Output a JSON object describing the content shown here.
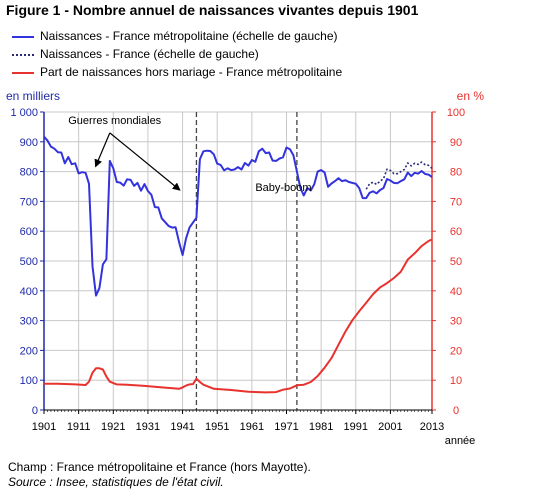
{
  "title": "Figure 1 - Nombre annuel de naissances vivantes depuis 1901",
  "legend": [
    {
      "label": "Naissances - France métropolitaine (échelle de gauche)",
      "color": "#3333dd",
      "style": "solid"
    },
    {
      "label": "Naissances - France (échelle de gauche)",
      "color": "#2a2a7a",
      "style": "dotted"
    },
    {
      "label": "Part de naissances hors mariage - France métropolitaine",
      "color": "#e8322e",
      "style": "solid"
    }
  ],
  "footer": {
    "champ": "Champ : France métropolitaine et France (hors Mayotte).",
    "source": "Source : Insee, statistiques de l'état civil."
  },
  "chart_data": {
    "type": "line",
    "left_axis": {
      "label": "en milliers",
      "range": [
        0,
        1000
      ],
      "ticks": [
        "0",
        "100",
        "200",
        "300",
        "400",
        "500",
        "600",
        "700",
        "800",
        "900",
        "1 000"
      ],
      "color": "#1f2aa8"
    },
    "right_axis": {
      "label": "en %",
      "range": [
        0,
        100
      ],
      "ticks": [
        "0",
        "10",
        "20",
        "30",
        "40",
        "50",
        "60",
        "70",
        "80",
        "90",
        "100"
      ],
      "color": "#e8322e"
    },
    "x_axis": {
      "label": "année",
      "range": [
        1901,
        2013
      ],
      "ticks": [
        "1901",
        "1911",
        "1921",
        "1931",
        "1941",
        "1951",
        "1961",
        "1971",
        "1981",
        "1991",
        "2001",
        "2013"
      ]
    },
    "grid": true,
    "vlines": [
      1945,
      1974
    ],
    "annotations": [
      {
        "text": "Guerres mondiales",
        "arrows_to": [
          [
            1916,
            820
          ],
          [
            1940,
            740
          ]
        ]
      },
      {
        "text": "Baby-boom",
        "near": [
          1967,
          735
        ]
      }
    ],
    "series": [
      {
        "name": "Naissances - France métropolitaine (échelle de gauche)",
        "axis": "left",
        "color": "#3333dd",
        "style": "solid",
        "x": [
          1901,
          1902,
          1903,
          1904,
          1905,
          1906,
          1907,
          1908,
          1909,
          1910,
          1911,
          1912,
          1913,
          1914,
          1915,
          1916,
          1917,
          1918,
          1919,
          1920,
          1921,
          1922,
          1923,
          1924,
          1925,
          1926,
          1927,
          1928,
          1929,
          1930,
          1931,
          1932,
          1933,
          1934,
          1935,
          1936,
          1937,
          1938,
          1939,
          1940,
          1941,
          1942,
          1943,
          1944,
          1945,
          1946,
          1947,
          1948,
          1949,
          1950,
          1951,
          1952,
          1953,
          1954,
          1955,
          1956,
          1957,
          1958,
          1959,
          1960,
          1961,
          1962,
          1963,
          1964,
          1965,
          1966,
          1967,
          1968,
          1969,
          1970,
          1971,
          1972,
          1973,
          1974,
          1975,
          1976,
          1977,
          1978,
          1979,
          1980,
          1981,
          1982,
          1983,
          1984,
          1985,
          1986,
          1987,
          1988,
          1989,
          1990,
          1991,
          1992,
          1993,
          1994,
          1995,
          1996,
          1997,
          1998,
          1999,
          2000,
          2001,
          2002,
          2003,
          2004,
          2005,
          2006,
          2007,
          2008,
          2009,
          2010,
          2011,
          2012,
          2013
        ],
        "values": [
          917,
          904,
          884,
          877,
          865,
          864,
          828,
          849,
          825,
          828,
          794,
          798,
          796,
          759,
          483,
          384,
          409,
          489,
          506,
          836,
          811,
          765,
          763,
          753,
          774,
          772,
          752,
          762,
          736,
          758,
          735,
          722,
          681,
          680,
          643,
          630,
          617,
          612,
          613,
          563,
          520,
          575,
          612,
          629,
          645,
          842,
          868,
          870,
          869,
          858,
          827,
          822,
          804,
          811,
          805,
          807,
          815,
          807,
          829,
          820,
          839,
          833,
          868,
          877,
          862,
          864,
          837,
          836,
          844,
          848,
          881,
          875,
          855,
          800,
          745,
          720,
          745,
          737,
          757,
          800,
          805,
          797,
          749,
          760,
          768,
          778,
          768,
          771,
          765,
          762,
          759,
          744,
          711,
          711,
          729,
          734,
          727,
          738,
          745,
          775,
          770,
          762,
          761,
          768,
          774,
          797,
          785,
          796,
          793,
          802,
          792,
          790,
          782
        ]
      },
      {
        "name": "Naissances - France (échelle de gauche)",
        "axis": "left",
        "color": "#2a2a7a",
        "style": "dotted",
        "x": [
          1994,
          1995,
          1996,
          1997,
          1998,
          1999,
          2000,
          2001,
          2002,
          2003,
          2004,
          2005,
          2006,
          2007,
          2008,
          2009,
          2010,
          2011,
          2012,
          2013
        ],
        "values": [
          741,
          759,
          764,
          757,
          768,
          776,
          808,
          804,
          793,
          793,
          800,
          807,
          829,
          819,
          828,
          824,
          832,
          823,
          821,
          811
        ]
      },
      {
        "name": "Part de naissances hors mariage - France métropolitaine",
        "axis": "right",
        "color": "#e8322e",
        "style": "solid",
        "x": [
          1901,
          1905,
          1910,
          1913,
          1914,
          1915,
          1916,
          1917,
          1918,
          1919,
          1920,
          1922,
          1925,
          1930,
          1935,
          1940,
          1941,
          1942,
          1943,
          1944,
          1945,
          1946,
          1947,
          1950,
          1955,
          1960,
          1965,
          1968,
          1970,
          1972,
          1974,
          1976,
          1978,
          1980,
          1982,
          1984,
          1986,
          1988,
          1990,
          1992,
          1994,
          1996,
          1998,
          2000,
          2002,
          2004,
          2006,
          2008,
          2010,
          2012,
          2013
        ],
        "values": [
          8.8,
          8.8,
          8.6,
          8.4,
          9.5,
          12.5,
          14,
          14,
          13.6,
          11.2,
          9.5,
          8.6,
          8.5,
          8.1,
          7.6,
          7.1,
          7.6,
          8.2,
          8.6,
          8.7,
          10.5,
          9.4,
          8.5,
          7.1,
          6.7,
          6.1,
          5.9,
          6,
          6.8,
          7.2,
          8.3,
          8.5,
          9.4,
          11.4,
          14.2,
          17.4,
          21.9,
          26.3,
          30.1,
          33.2,
          36,
          38.9,
          41.1,
          42.6,
          44.3,
          46.4,
          50.5,
          52.6,
          55,
          56.7,
          57.2
        ]
      }
    ]
  }
}
